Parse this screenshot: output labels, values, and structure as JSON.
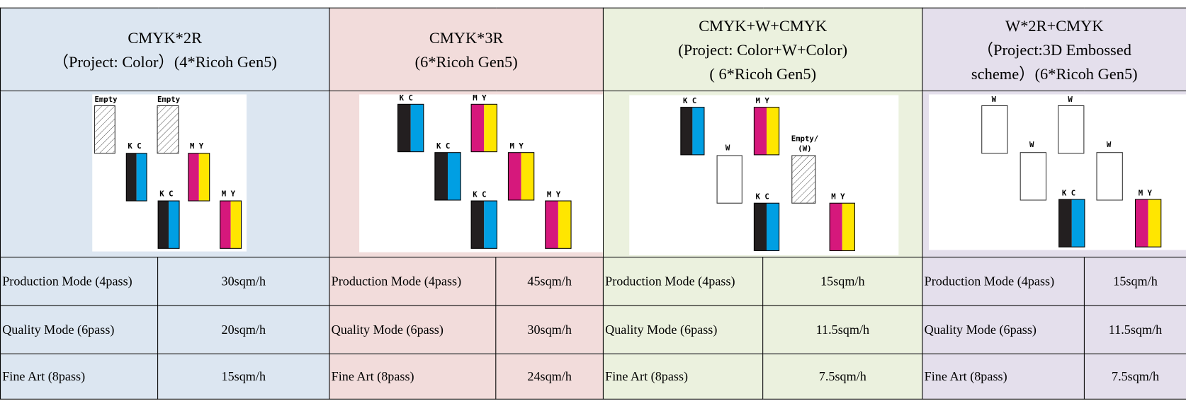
{
  "columns": [
    {
      "title_lines": [
        "CMYK*2R",
        "（Project: Color）(4*Ricoh Gen5)"
      ],
      "diagram_labels": [
        "Empty",
        "Empty",
        "K C",
        "M Y",
        "K C",
        "M Y"
      ],
      "rows": [
        [
          "Production Mode (4pass)",
          "30sqm/h"
        ],
        [
          "Quality Mode (6pass)",
          "20sqm/h"
        ],
        [
          "Fine Art (8pass)",
          "15sqm/h"
        ]
      ]
    },
    {
      "title_lines": [
        "CMYK*3R",
        "(6*Ricoh Gen5)"
      ],
      "diagram_labels": [
        "K C",
        "M Y",
        "K C",
        "M Y",
        "K C",
        "M Y"
      ],
      "rows": [
        [
          "Production Mode (4pass)",
          "45sqm/h"
        ],
        [
          "Quality Mode (6pass)",
          "30sqm/h"
        ],
        [
          "Fine Art (8pass)",
          "24sqm/h"
        ]
      ]
    },
    {
      "title_lines": [
        "CMYK+W+CMYK",
        "(Project: Color+W+Color)",
        "( 6*Ricoh Gen5)"
      ],
      "diagram_labels": [
        "K C",
        "M Y",
        "W",
        "Empty/",
        "(W)",
        "K C",
        "M Y"
      ],
      "rows": [
        [
          "Production Mode (4pass)",
          "15sqm/h"
        ],
        [
          "Quality Mode (6pass)",
          "11.5sqm/h"
        ],
        [
          "Fine Art (8pass)",
          "7.5sqm/h"
        ]
      ]
    },
    {
      "title_lines": [
        "W*2R+CMYK",
        "（Project:3D Embossed",
        "scheme）(6*Ricoh Gen5)"
      ],
      "diagram_labels": [
        "W",
        "W",
        "W",
        "W",
        "K C",
        "M Y"
      ],
      "rows": [
        [
          "Production Mode (4pass)",
          "15sqm/h"
        ],
        [
          "Quality Mode (6pass)",
          "11.5sqm/h"
        ],
        [
          "Fine Art (8pass)",
          "7.5sqm/h"
        ]
      ]
    }
  ]
}
